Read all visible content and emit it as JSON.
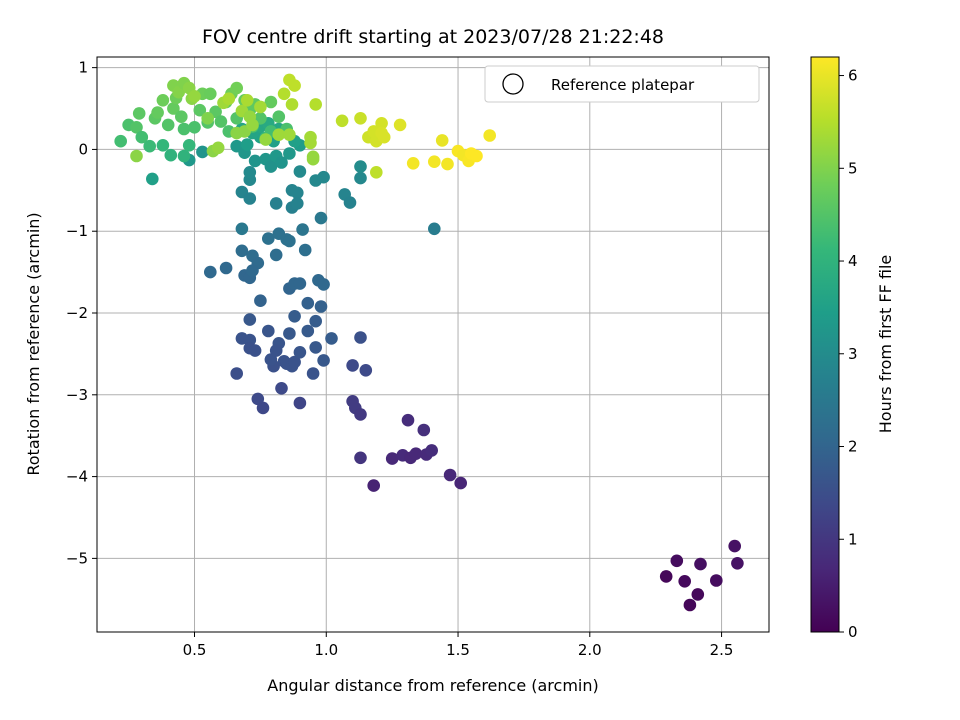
{
  "chart_data": {
    "type": "scatter",
    "title": "FOV centre drift starting at 2023/07/28 21:22:48",
    "xlabel": "Angular distance from reference (arcmin)",
    "ylabel": "Rotation from reference (arcmin)",
    "xlim": [
      0.13,
      2.68
    ],
    "ylim": [
      -5.9,
      1.13
    ],
    "xticks": [
      0.5,
      1.0,
      1.5,
      2.0,
      2.5
    ],
    "xtick_labels": [
      "0.5",
      "1.0",
      "1.5",
      "2.0",
      "2.5"
    ],
    "yticks": [
      1,
      0,
      -1,
      -2,
      -3,
      -4,
      -5
    ],
    "ytick_labels": [
      "1",
      "0",
      "−1",
      "−2",
      "−3",
      "−4",
      "−5"
    ],
    "grid": true,
    "legend": {
      "location": "upper right",
      "entries": [
        "Reference platepar"
      ],
      "marker": "open-circle"
    },
    "colorbar": {
      "label": "Hours from first FF file",
      "colormap": "viridis",
      "range": [
        0,
        6.2
      ],
      "ticks": [
        0,
        1,
        2,
        3,
        4,
        5,
        6
      ],
      "tick_labels": [
        "0",
        "1",
        "2",
        "3",
        "4",
        "5",
        "6"
      ]
    },
    "colormap_stops": [
      "#440154",
      "#482878",
      "#3e4989",
      "#31688e",
      "#26828e",
      "#1f9e89",
      "#35b779",
      "#6ece58",
      "#b5de2b",
      "#fde725"
    ],
    "points": [
      [
        2.29,
        -5.22,
        0.1
      ],
      [
        2.33,
        -5.03,
        0.2
      ],
      [
        2.36,
        -5.28,
        0.15
      ],
      [
        2.38,
        -5.57,
        0.1
      ],
      [
        2.41,
        -5.44,
        0.12
      ],
      [
        2.42,
        -5.07,
        0.25
      ],
      [
        2.48,
        -5.27,
        0.2
      ],
      [
        2.55,
        -4.85,
        0.3
      ],
      [
        2.56,
        -5.06,
        0.3
      ],
      [
        1.18,
        -4.11,
        0.6
      ],
      [
        1.25,
        -3.78,
        0.7
      ],
      [
        1.29,
        -3.74,
        0.75
      ],
      [
        1.31,
        -3.31,
        0.8
      ],
      [
        1.32,
        -3.77,
        0.7
      ],
      [
        1.34,
        -3.72,
        0.7
      ],
      [
        1.37,
        -3.43,
        0.85
      ],
      [
        1.38,
        -3.73,
        0.75
      ],
      [
        1.4,
        -3.68,
        0.8
      ],
      [
        1.47,
        -3.98,
        0.7
      ],
      [
        1.51,
        -4.08,
        0.65
      ],
      [
        1.13,
        -3.77,
        0.95
      ],
      [
        1.1,
        -3.08,
        1.1
      ],
      [
        1.11,
        -3.16,
        1.1
      ],
      [
        1.13,
        -3.24,
        1.05
      ],
      [
        1.1,
        -2.64,
        1.4
      ],
      [
        1.15,
        -2.7,
        1.4
      ],
      [
        1.13,
        -2.3,
        1.55
      ],
      [
        0.74,
        -3.05,
        1.4
      ],
      [
        0.76,
        -3.16,
        1.35
      ],
      [
        0.83,
        -2.92,
        1.4
      ],
      [
        0.9,
        -3.1,
        1.3
      ],
      [
        0.66,
        -2.74,
        1.5
      ],
      [
        0.68,
        -2.31,
        1.6
      ],
      [
        0.71,
        -2.33,
        1.6
      ],
      [
        0.71,
        -2.43,
        1.55
      ],
      [
        0.73,
        -2.46,
        1.55
      ],
      [
        0.71,
        -2.08,
        1.7
      ],
      [
        0.78,
        -2.22,
        1.65
      ],
      [
        0.8,
        -2.65,
        1.55
      ],
      [
        0.79,
        -2.57,
        1.6
      ],
      [
        0.82,
        -2.37,
        1.65
      ],
      [
        0.81,
        -2.46,
        1.6
      ],
      [
        0.84,
        -2.59,
        1.6
      ],
      [
        0.85,
        -2.62,
        1.6
      ],
      [
        0.86,
        -2.25,
        1.7
      ],
      [
        0.87,
        -2.65,
        1.6
      ],
      [
        0.88,
        -2.6,
        1.6
      ],
      [
        0.88,
        -2.04,
        1.8
      ],
      [
        0.9,
        -2.48,
        1.65
      ],
      [
        0.93,
        -2.22,
        1.75
      ],
      [
        0.96,
        -2.1,
        1.8
      ],
      [
        0.96,
        -2.42,
        1.7
      ],
      [
        0.95,
        -2.74,
        1.6
      ],
      [
        0.99,
        -2.58,
        1.7
      ],
      [
        1.02,
        -2.31,
        1.8
      ],
      [
        0.93,
        -1.88,
        1.9
      ],
      [
        0.98,
        -1.92,
        1.9
      ],
      [
        0.56,
        -1.5,
        2.1
      ],
      [
        0.62,
        -1.45,
        2.1
      ],
      [
        0.68,
        -1.24,
        2.2
      ],
      [
        0.69,
        -1.54,
        2.05
      ],
      [
        0.71,
        -1.57,
        2.05
      ],
      [
        0.72,
        -1.3,
        2.2
      ],
      [
        0.74,
        -1.39,
        2.15
      ],
      [
        0.72,
        -1.48,
        2.1
      ],
      [
        0.75,
        -1.85,
        1.95
      ],
      [
        0.78,
        -1.09,
        2.3
      ],
      [
        0.81,
        -1.29,
        2.2
      ],
      [
        0.82,
        -1.03,
        2.3
      ],
      [
        0.85,
        -1.1,
        2.3
      ],
      [
        0.86,
        -1.7,
        2.0
      ],
      [
        0.86,
        -1.12,
        2.3
      ],
      [
        0.88,
        -1.64,
        2.05
      ],
      [
        0.9,
        -1.64,
        2.05
      ],
      [
        0.92,
        -1.23,
        2.25
      ],
      [
        0.91,
        -0.98,
        2.4
      ],
      [
        0.97,
        -1.6,
        2.1
      ],
      [
        0.99,
        -1.65,
        2.1
      ],
      [
        0.98,
        -0.84,
        2.5
      ],
      [
        0.68,
        -0.97,
        2.5
      ],
      [
        0.68,
        -0.52,
        2.8
      ],
      [
        0.71,
        -0.6,
        2.75
      ],
      [
        0.71,
        -0.37,
        2.9
      ],
      [
        0.71,
        -0.28,
        2.95
      ],
      [
        0.81,
        -0.66,
        2.7
      ],
      [
        0.87,
        -0.71,
        2.7
      ],
      [
        0.87,
        -0.5,
        2.8
      ],
      [
        0.89,
        -0.53,
        2.8
      ],
      [
        0.89,
        -0.66,
        2.75
      ],
      [
        0.9,
        -0.27,
        2.95
      ],
      [
        0.96,
        -0.38,
        2.9
      ],
      [
        0.99,
        -0.34,
        2.9
      ],
      [
        1.07,
        -0.55,
        2.8
      ],
      [
        1.09,
        -0.65,
        2.75
      ],
      [
        1.13,
        -0.35,
        2.9
      ],
      [
        1.13,
        -0.21,
        3.0
      ],
      [
        1.41,
        -0.97,
        2.6
      ],
      [
        0.34,
        -0.36,
        3.5
      ],
      [
        0.48,
        -0.13,
        3.3
      ],
      [
        0.53,
        -0.03,
        3.2
      ],
      [
        0.66,
        0.04,
        3.3
      ],
      [
        0.69,
        -0.04,
        3.25
      ],
      [
        0.73,
        -0.14,
        3.2
      ],
      [
        0.77,
        -0.12,
        3.25
      ],
      [
        0.79,
        -0.21,
        3.15
      ],
      [
        0.81,
        -0.08,
        3.3
      ],
      [
        0.83,
        -0.16,
        3.2
      ],
      [
        0.86,
        -0.05,
        3.3
      ],
      [
        0.9,
        0.05,
        3.4
      ],
      [
        0.88,
        0.1,
        3.5
      ],
      [
        0.8,
        0.1,
        3.5
      ],
      [
        0.75,
        0.15,
        3.55
      ],
      [
        0.72,
        0.2,
        3.6
      ],
      [
        0.75,
        0.28,
        3.7
      ],
      [
        0.78,
        0.32,
        3.75
      ],
      [
        0.82,
        0.25,
        3.7
      ],
      [
        0.7,
        0.06,
        3.45
      ],
      [
        0.68,
        0.25,
        3.65
      ],
      [
        0.22,
        0.1,
        4.3
      ],
      [
        0.25,
        0.3,
        4.4
      ],
      [
        0.28,
        0.27,
        4.5
      ],
      [
        0.29,
        0.44,
        4.6
      ],
      [
        0.3,
        0.15,
        4.3
      ],
      [
        0.33,
        0.04,
        4.2
      ],
      [
        0.35,
        0.38,
        4.6
      ],
      [
        0.36,
        0.45,
        4.7
      ],
      [
        0.38,
        0.6,
        4.8
      ],
      [
        0.38,
        0.05,
        4.1
      ],
      [
        0.4,
        0.3,
        4.5
      ],
      [
        0.41,
        -0.07,
        4.0
      ],
      [
        0.42,
        0.5,
        4.7
      ],
      [
        0.43,
        0.63,
        4.8
      ],
      [
        0.45,
        0.4,
        4.6
      ],
      [
        0.46,
        0.25,
        4.4
      ],
      [
        0.46,
        -0.08,
        4.0
      ],
      [
        0.48,
        0.05,
        4.1
      ],
      [
        0.5,
        0.27,
        4.4
      ],
      [
        0.52,
        0.48,
        4.6
      ],
      [
        0.53,
        0.68,
        4.8
      ],
      [
        0.55,
        0.33,
        4.5
      ],
      [
        0.56,
        0.68,
        4.75
      ],
      [
        0.58,
        0.46,
        4.6
      ],
      [
        0.6,
        0.34,
        4.5
      ],
      [
        0.62,
        0.58,
        4.7
      ],
      [
        0.63,
        0.22,
        4.4
      ],
      [
        0.64,
        0.68,
        4.8
      ],
      [
        0.66,
        0.75,
        4.85
      ],
      [
        0.66,
        0.38,
        4.5
      ],
      [
        0.69,
        0.6,
        4.7
      ],
      [
        0.71,
        0.48,
        4.6
      ],
      [
        0.72,
        0.28,
        4.4
      ],
      [
        0.73,
        0.55,
        4.65
      ],
      [
        0.75,
        0.38,
        4.5
      ],
      [
        0.77,
        0.14,
        4.2
      ],
      [
        0.79,
        0.58,
        4.7
      ],
      [
        0.79,
        0.22,
        4.3
      ],
      [
        0.82,
        0.4,
        4.5
      ],
      [
        0.85,
        0.25,
        4.4
      ],
      [
        0.28,
        -0.08,
        5.1
      ],
      [
        0.42,
        0.78,
        5.0
      ],
      [
        0.44,
        0.7,
        5.05
      ],
      [
        0.46,
        0.81,
        5.0
      ],
      [
        0.48,
        0.75,
        5.1
      ],
      [
        0.49,
        0.62,
        5.1
      ],
      [
        0.5,
        0.65,
        5.2
      ],
      [
        0.55,
        0.38,
        5.0
      ],
      [
        0.57,
        -0.02,
        5.1
      ],
      [
        0.59,
        0.02,
        5.2
      ],
      [
        0.61,
        0.57,
        5.3
      ],
      [
        0.63,
        0.62,
        5.4
      ],
      [
        0.66,
        0.2,
        5.1
      ],
      [
        0.68,
        0.47,
        5.3
      ],
      [
        0.7,
        0.6,
        5.4
      ],
      [
        0.71,
        0.4,
        5.2
      ],
      [
        0.69,
        0.22,
        5.1
      ],
      [
        0.72,
        0.3,
        5.2
      ],
      [
        0.75,
        0.52,
        5.35
      ],
      [
        0.77,
        0.12,
        5.2
      ],
      [
        0.82,
        0.18,
        5.3
      ],
      [
        0.84,
        0.68,
        5.5
      ],
      [
        0.86,
        0.85,
        5.6
      ],
      [
        0.87,
        0.55,
        5.45
      ],
      [
        0.88,
        0.78,
        5.6
      ],
      [
        0.86,
        0.18,
        5.3
      ],
      [
        0.94,
        0.15,
        5.35
      ],
      [
        0.95,
        -0.09,
        5.2
      ],
      [
        0.96,
        0.55,
        5.5
      ],
      [
        0.95,
        -0.12,
        5.2
      ],
      [
        0.94,
        0.08,
        5.35
      ],
      [
        1.06,
        0.35,
        5.6
      ],
      [
        1.13,
        0.38,
        5.7
      ],
      [
        1.16,
        0.15,
        5.75
      ],
      [
        1.18,
        0.22,
        5.8
      ],
      [
        1.19,
        -0.28,
        5.6
      ],
      [
        1.19,
        0.1,
        5.8
      ],
      [
        1.21,
        0.32,
        5.8
      ],
      [
        1.22,
        0.15,
        5.85
      ],
      [
        1.21,
        0.2,
        5.85
      ],
      [
        1.28,
        0.3,
        5.9
      ],
      [
        1.33,
        -0.17,
        6.1
      ],
      [
        1.41,
        -0.15,
        6.1
      ],
      [
        1.44,
        0.11,
        6.0
      ],
      [
        1.46,
        -0.18,
        6.1
      ],
      [
        1.5,
        -0.02,
        6.15
      ],
      [
        1.52,
        -0.07,
        6.1
      ],
      [
        1.54,
        -0.14,
        6.15
      ],
      [
        1.55,
        -0.05,
        6.2
      ],
      [
        1.57,
        -0.08,
        6.2
      ],
      [
        1.62,
        0.17,
        6.1
      ]
    ]
  }
}
